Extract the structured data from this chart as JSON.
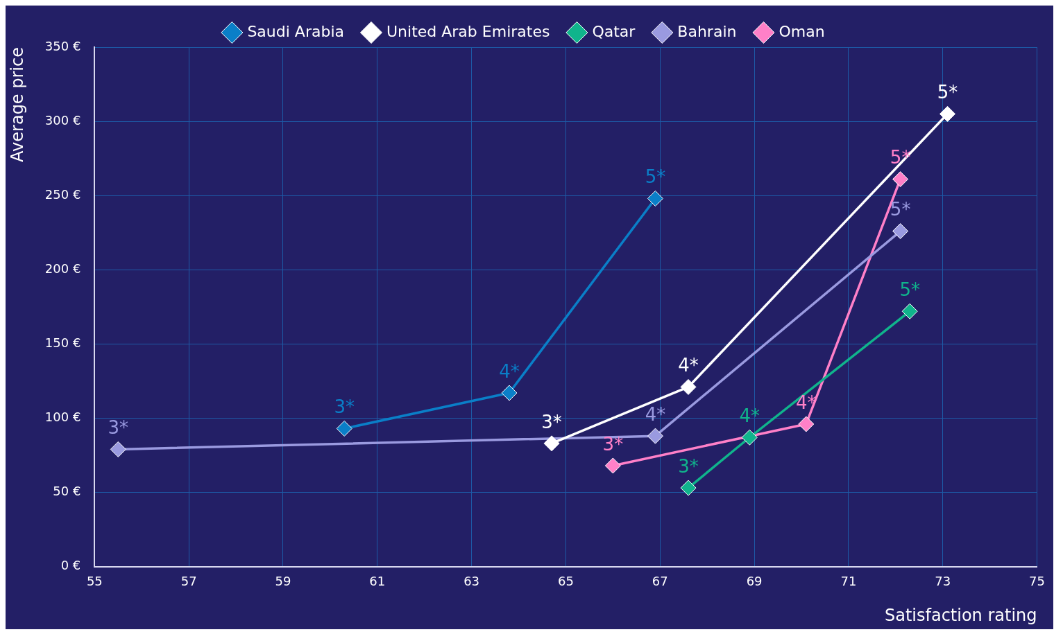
{
  "chart_data": {
    "type": "line",
    "xlabel": "Satisfaction rating",
    "ylabel": "Average price",
    "xlim": [
      55,
      75
    ],
    "xticks": [
      55,
      57,
      59,
      61,
      63,
      65,
      67,
      69,
      71,
      73,
      75
    ],
    "ylim": [
      0,
      350
    ],
    "yticks": [
      {
        "value": 0,
        "label": "0 €"
      },
      {
        "value": 50,
        "label": "50 €"
      },
      {
        "value": 100,
        "label": "100 €"
      },
      {
        "value": 150,
        "label": "150 €"
      },
      {
        "value": 200,
        "label": "200 €"
      },
      {
        "value": 250,
        "label": "250 €"
      },
      {
        "value": 300,
        "label": "300 €"
      },
      {
        "value": 350,
        "label": "350 €"
      }
    ],
    "grid": true,
    "legend": "top",
    "marker": "diamond",
    "line_style": "solid",
    "series": [
      {
        "name": "Saudi Arabia",
        "color": "#0a7fc8",
        "x": [
          60.3,
          63.8,
          66.9
        ],
        "values": [
          93,
          117,
          248
        ]
      },
      {
        "name": "United Arab Emirates",
        "color": "#ffffff",
        "x": [
          64.7,
          67.6,
          73.1
        ],
        "values": [
          83,
          121,
          305
        ]
      },
      {
        "name": "Qatar",
        "color": "#10b48c",
        "x": [
          67.6,
          68.9,
          72.3
        ],
        "values": [
          53,
          87,
          172
        ]
      },
      {
        "name": "Bahrain",
        "color": "#9a9ae0",
        "x": [
          55.5,
          66.9,
          72.1
        ],
        "values": [
          79,
          88,
          226
        ]
      },
      {
        "name": "Oman",
        "color": "#ff80c8",
        "x": [
          66.0,
          70.1,
          72.1
        ],
        "values": [
          68,
          96,
          261
        ]
      }
    ],
    "annotations": [
      {
        "text": "3*",
        "x": 60.3,
        "y": 93
      },
      {
        "text": "4*",
        "x": 63.8,
        "y": 117
      },
      {
        "text": "5*",
        "x": 66.9,
        "y": 248
      },
      {
        "text": "3*",
        "x": 64.7,
        "y": 83
      },
      {
        "text": "4*",
        "x": 67.6,
        "y": 121
      },
      {
        "text": "5*",
        "x": 73.1,
        "y": 305
      },
      {
        "text": "3*",
        "x": 67.6,
        "y": 53
      },
      {
        "text": "4*",
        "x": 68.9,
        "y": 87
      },
      {
        "text": "5*",
        "x": 72.3,
        "y": 172
      },
      {
        "text": "3*",
        "x": 55.5,
        "y": 79
      },
      {
        "text": "4*",
        "x": 66.9,
        "y": 88
      },
      {
        "text": "5*",
        "x": 72.1,
        "y": 226
      },
      {
        "text": "3*",
        "x": 66.0,
        "y": 68
      },
      {
        "text": "4*",
        "x": 70.1,
        "y": 96
      },
      {
        "text": "5*",
        "x": 72.1,
        "y": 261
      }
    ]
  }
}
